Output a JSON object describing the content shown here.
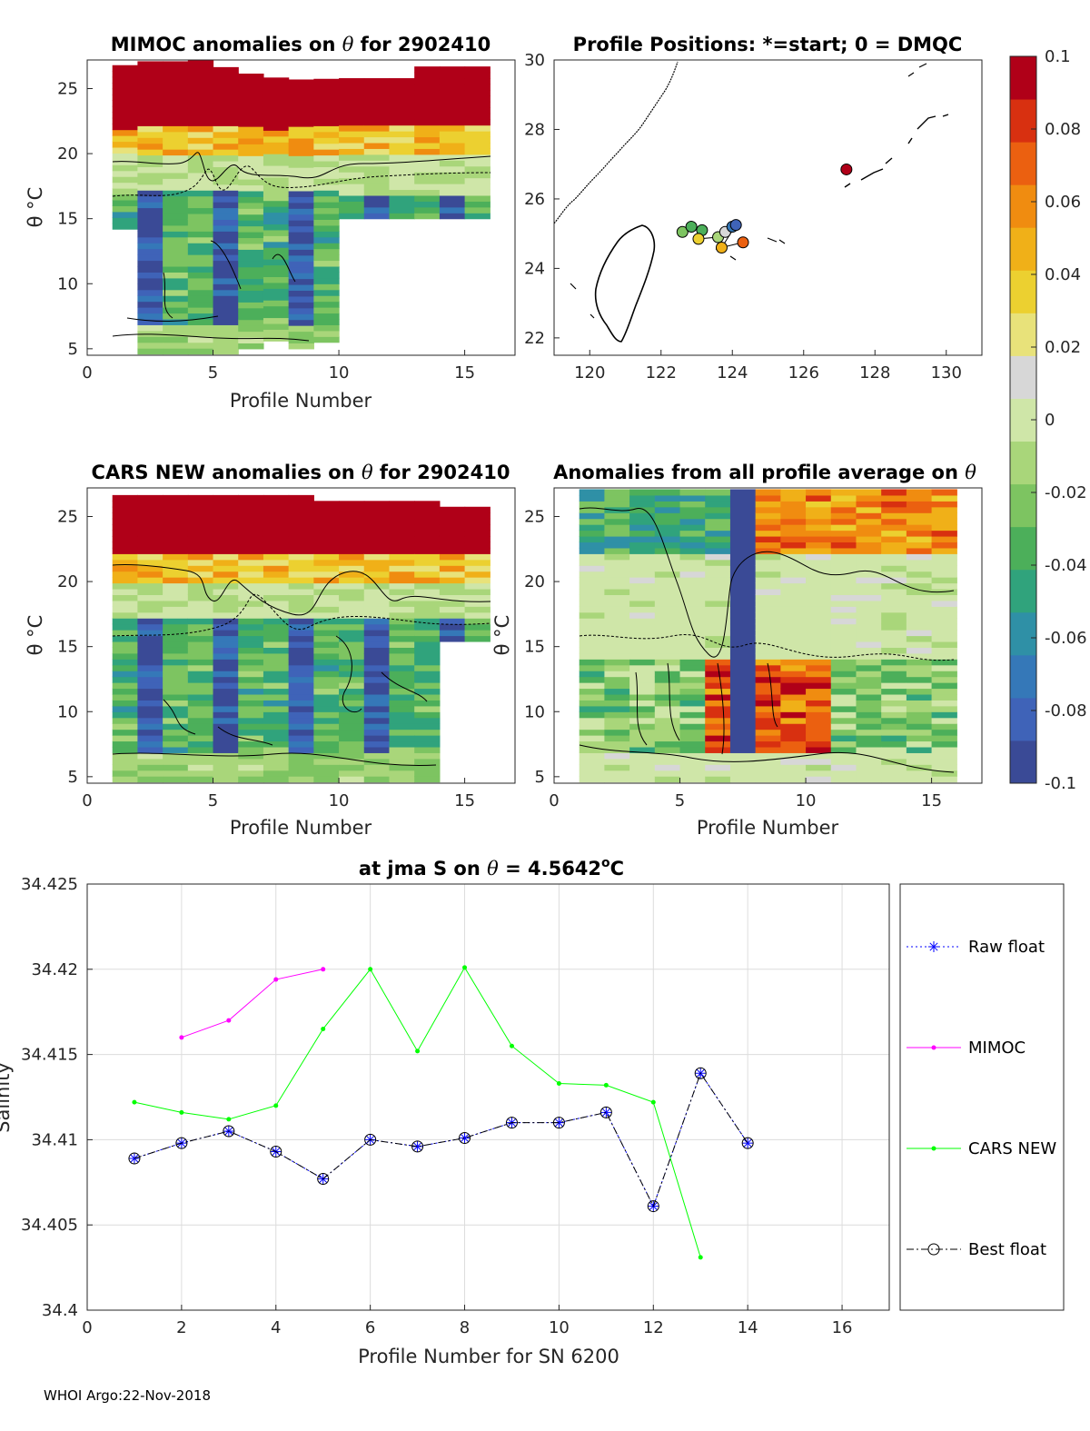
{
  "colors": {
    "raw": "#0000ff",
    "mimoc": "#ff00ff",
    "cars": "#00ff00",
    "best": "#000080",
    "colormap": [
      "#3a4a96",
      "#3f63b8",
      "#3578b8",
      "#2f90a6",
      "#30a37c",
      "#4caf5a",
      "#7dc461",
      "#a9d67a",
      "#cfe6a8",
      "#d7d7d7",
      "#e8e27a",
      "#ecd030",
      "#f0b018",
      "#f08c10",
      "#eb6010",
      "#d83010",
      "#b00018"
    ]
  },
  "chart_data": [
    {
      "id": "mimoc",
      "type": "heatmap",
      "title": "MIMOC anomalies on θ  for 2902410",
      "xlabel": "Profile Number",
      "ylabel": "θ °C",
      "xlim": [
        0,
        17
      ],
      "ylim": [
        4.5,
        27.2
      ],
      "xticks": [
        "0",
        "5",
        "10",
        "15"
      ],
      "yticks": [
        "5",
        "10",
        "15",
        "20",
        "25"
      ],
      "columns": [
        {
          "profile": 1,
          "tmin": 14.2,
          "tmax": 26.4
        },
        {
          "profile": 2,
          "tmin": 4.6,
          "tmax": 27.0
        },
        {
          "profile": 3,
          "tmin": 4.6,
          "tmax": 27.0
        },
        {
          "profile": 4,
          "tmin": 4.6,
          "tmax": 27.1
        },
        {
          "profile": 5,
          "tmin": 4.6,
          "tmax": 26.6
        },
        {
          "profile": 6,
          "tmin": 5.0,
          "tmax": 26.0
        },
        {
          "profile": 7,
          "tmin": 5.6,
          "tmax": 25.4
        },
        {
          "profile": 8,
          "tmin": 5.0,
          "tmax": 25.4
        },
        {
          "profile": 9,
          "tmin": 5.5,
          "tmax": 25.4
        },
        {
          "profile": 10,
          "tmin": 15.0,
          "tmax": 25.4
        },
        {
          "profile": 11,
          "tmin": 15.0,
          "tmax": 25.4
        },
        {
          "profile": 12,
          "tmin": 15.0,
          "tmax": 25.4
        },
        {
          "profile": 13,
          "tmin": 15.0,
          "tmax": 26.3
        },
        {
          "profile": 14,
          "tmin": 15.0,
          "tmax": 26.3
        },
        {
          "profile": 15,
          "tmin": 15.0,
          "tmax": 26.3
        }
      ]
    },
    {
      "id": "positions",
      "type": "scatter",
      "title": "Profile Positions: *=start; 0 = DMQC",
      "xlim": [
        119,
        131
      ],
      "ylim": [
        21.5,
        30
      ],
      "xticks": [
        "120",
        "122",
        "124",
        "126",
        "128",
        "130"
      ],
      "yticks": [
        "22",
        "24",
        "26",
        "28",
        "30"
      ],
      "points": [
        {
          "lon": 122.6,
          "lat": 25.05,
          "anomaly": -0.02
        },
        {
          "lon": 122.85,
          "lat": 25.2,
          "anomaly": -0.03
        },
        {
          "lon": 123.15,
          "lat": 25.1,
          "anomaly": -0.04
        },
        {
          "lon": 123.05,
          "lat": 24.85,
          "anomaly": 0.03
        },
        {
          "lon": 123.6,
          "lat": 24.9,
          "anomaly": -0.01
        },
        {
          "lon": 123.8,
          "lat": 25.05,
          "anomaly": 0.01
        },
        {
          "lon": 124.0,
          "lat": 25.2,
          "anomaly": -0.07
        },
        {
          "lon": 124.1,
          "lat": 25.25,
          "anomaly": -0.08
        },
        {
          "lon": 123.7,
          "lat": 24.6,
          "anomaly": 0.05
        },
        {
          "lon": 124.3,
          "lat": 24.75,
          "anomaly": 0.07
        },
        {
          "lon": 127.2,
          "lat": 26.85,
          "anomaly": 0.1
        }
      ]
    },
    {
      "id": "cars",
      "type": "heatmap",
      "title": "CARS NEW anomalies on θ for 2902410",
      "xlabel": "Profile Number",
      "ylabel": "θ °C",
      "xlim": [
        0,
        17
      ],
      "ylim": [
        4.5,
        27.2
      ],
      "xticks": [
        "0",
        "5",
        "10",
        "15"
      ],
      "yticks": [
        "5",
        "10",
        "15",
        "20",
        "25"
      ],
      "columns": [
        {
          "profile": 1,
          "tmin": 4.6,
          "tmax": 26.4
        },
        {
          "profile": 2,
          "tmin": 4.6,
          "tmax": 26.4
        },
        {
          "profile": 3,
          "tmin": 4.6,
          "tmax": 26.4
        },
        {
          "profile": 4,
          "tmin": 4.6,
          "tmax": 26.5
        },
        {
          "profile": 5,
          "tmin": 4.6,
          "tmax": 26.5
        },
        {
          "profile": 6,
          "tmin": 4.6,
          "tmax": 26.4
        },
        {
          "profile": 7,
          "tmin": 4.6,
          "tmax": 26.4
        },
        {
          "profile": 8,
          "tmin": 4.6,
          "tmax": 26.3
        },
        {
          "profile": 9,
          "tmin": 4.6,
          "tmax": 26.0
        },
        {
          "profile": 10,
          "tmin": 4.6,
          "tmax": 26.0
        },
        {
          "profile": 11,
          "tmin": 4.6,
          "tmax": 26.0
        },
        {
          "profile": 12,
          "tmin": 4.6,
          "tmax": 26.0
        },
        {
          "profile": 13,
          "tmin": 4.6,
          "tmax": 26.0
        },
        {
          "profile": 14,
          "tmin": 15.4,
          "tmax": 25.4
        },
        {
          "profile": 15,
          "tmin": 15.4,
          "tmax": 25.4
        }
      ]
    },
    {
      "id": "average",
      "type": "heatmap",
      "title": "Anomalies from all profile average on θ",
      "xlabel": "Profile Number",
      "ylabel": "θ °C",
      "xlim": [
        0,
        17
      ],
      "ylim": [
        4.5,
        27.2
      ],
      "xticks": [
        "0",
        "5",
        "10",
        "15"
      ],
      "yticks": [
        "5",
        "10",
        "15",
        "20",
        "25"
      ],
      "columns": [
        {
          "profile": 1,
          "tmin": 4.6,
          "tmax": 27.0
        },
        {
          "profile": 2,
          "tmin": 4.6,
          "tmax": 27.0
        },
        {
          "profile": 3,
          "tmin": 4.6,
          "tmax": 27.0
        },
        {
          "profile": 4,
          "tmin": 4.6,
          "tmax": 27.0
        },
        {
          "profile": 5,
          "tmin": 4.6,
          "tmax": 27.0
        },
        {
          "profile": 6,
          "tmin": 4.6,
          "tmax": 27.0
        },
        {
          "profile": 7,
          "tmin": 4.6,
          "tmax": 27.0
        },
        {
          "profile": 8,
          "tmin": 4.6,
          "tmax": 27.0
        },
        {
          "profile": 9,
          "tmin": 4.6,
          "tmax": 27.0
        },
        {
          "profile": 10,
          "tmin": 4.6,
          "tmax": 27.0
        },
        {
          "profile": 11,
          "tmin": 4.6,
          "tmax": 27.0
        },
        {
          "profile": 12,
          "tmin": 4.6,
          "tmax": 27.0
        },
        {
          "profile": 13,
          "tmin": 4.6,
          "tmax": 27.0
        },
        {
          "profile": 14,
          "tmin": 4.6,
          "tmax": 27.0
        },
        {
          "profile": 15,
          "tmin": 4.6,
          "tmax": 27.0
        }
      ]
    },
    {
      "id": "salinity",
      "type": "line",
      "title": "at jma S on θ = 4.5642°C",
      "title_main": "at jma S on ",
      "title_theta": "θ",
      "title_value": " = 4.5642",
      "title_sup": "o",
      "title_unit": "C",
      "xlabel": "Profile Number for SN 6200",
      "ylabel": "Salinity",
      "xlim": [
        0,
        17
      ],
      "ylim": [
        34.4,
        34.425
      ],
      "xticks": [
        "0",
        "2",
        "4",
        "6",
        "8",
        "10",
        "12",
        "14",
        "16"
      ],
      "yticks": [
        "34.4",
        "34.405",
        "34.41",
        "34.415",
        "34.42",
        "34.425"
      ],
      "series": [
        {
          "name": "Raw float",
          "x": [
            1,
            2,
            3,
            4,
            5,
            6,
            7,
            8,
            9,
            10,
            11,
            12,
            13,
            14
          ],
          "values": [
            34.4089,
            34.4098,
            34.4105,
            34.4093,
            34.4077,
            34.41,
            34.4096,
            34.4101,
            34.411,
            34.411,
            34.4116,
            34.4061,
            34.4139,
            34.4098
          ]
        },
        {
          "name": "MIMOC",
          "x": [
            2,
            3,
            4,
            5
          ],
          "values": [
            34.416,
            34.417,
            34.4194,
            34.42
          ]
        },
        {
          "name": "CARS NEW",
          "x": [
            1,
            2,
            3,
            4,
            5,
            6,
            7,
            8,
            9,
            10,
            11,
            12,
            13
          ],
          "values": [
            34.4122,
            34.4116,
            34.4112,
            34.412,
            34.4165,
            34.42,
            34.4152,
            34.4201,
            34.4155,
            34.4133,
            34.4132,
            34.4122,
            34.4031
          ]
        },
        {
          "name": "Best float",
          "x": [
            1,
            2,
            3,
            4,
            5,
            6,
            7,
            8,
            9,
            10,
            11,
            12,
            13,
            14
          ],
          "values": [
            34.4089,
            34.4098,
            34.4105,
            34.4093,
            34.4077,
            34.41,
            34.4096,
            34.4101,
            34.411,
            34.411,
            34.4116,
            34.4061,
            34.4139,
            34.4098
          ]
        }
      ]
    }
  ],
  "colorbar": {
    "ticks": [
      "0.1",
      "0.08",
      "0.06",
      "0.04",
      "0.02",
      "0",
      "-0.02",
      "-0.04",
      "-0.06",
      "-0.08",
      "-0.1"
    ]
  },
  "footer": "WHOI Argo:22-Nov-2018"
}
